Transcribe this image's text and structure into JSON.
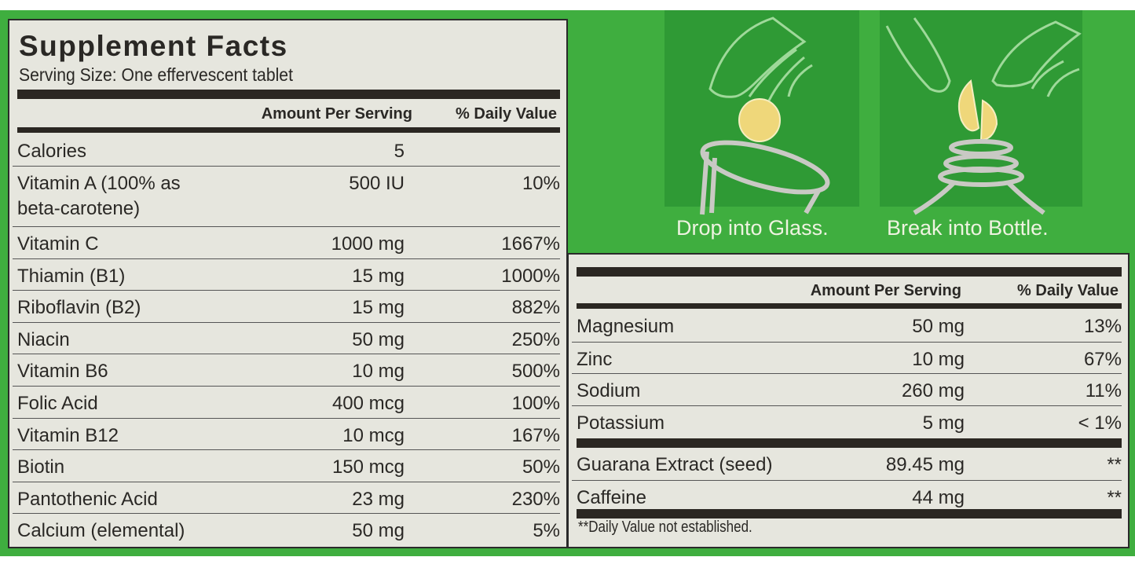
{
  "colors": {
    "background": "#3fae3f",
    "panel": "#e6e6de",
    "text": "#2a2825",
    "tablet": "#efd77a"
  },
  "instructions": {
    "step1": "Drop into Glass.",
    "step2": "Break into Bottle."
  },
  "icons": [
    "hand-icon",
    "tablet-icon",
    "glass-icon",
    "bottle-icon"
  ],
  "facts": {
    "title": "Supplement Facts",
    "serving_size": "Serving Size: One effervescent tablet",
    "header_amount": "Amount Per Serving",
    "header_dv": "% Daily Value",
    "rows": [
      {
        "name": "Calories",
        "amount": "5",
        "dv": ""
      },
      {
        "name": "Vitamin A (100% as\nbeta-carotene)",
        "amount": "500 IU",
        "dv": "10%"
      },
      {
        "name": "Vitamin C",
        "amount": "1000 mg",
        "dv": "1667%"
      },
      {
        "name": "Thiamin (B1)",
        "amount": "15 mg",
        "dv": "1000%"
      },
      {
        "name": "Riboflavin (B2)",
        "amount": "15 mg",
        "dv": "882%"
      },
      {
        "name": "Niacin",
        "amount": "50 mg",
        "dv": "250%"
      },
      {
        "name": "Vitamin B6",
        "amount": "10 mg",
        "dv": "500%"
      },
      {
        "name": "Folic Acid",
        "amount": "400 mcg",
        "dv": "100%"
      },
      {
        "name": "Vitamin B12",
        "amount": "10 mcg",
        "dv": "167%"
      },
      {
        "name": "Biotin",
        "amount": "150 mcg",
        "dv": "50%"
      },
      {
        "name": "Pantothenic Acid",
        "amount": "23 mg",
        "dv": "230%"
      },
      {
        "name": "Calcium (elemental)",
        "amount": "50 mg",
        "dv": "5%"
      }
    ]
  },
  "facts_continued": {
    "header_amount": "Amount Per Serving",
    "header_dv": "% Daily Value",
    "minerals": [
      {
        "name": "Magnesium",
        "amount": "50 mg",
        "dv": "13%"
      },
      {
        "name": "Zinc",
        "amount": "10 mg",
        "dv": "67%"
      },
      {
        "name": "Sodium",
        "amount": "260 mg",
        "dv": "11%"
      },
      {
        "name": "Potassium",
        "amount": "5 mg",
        "dv": "< 1%"
      }
    ],
    "other": [
      {
        "name": "Guarana Extract (seed)",
        "amount": "89.45 mg",
        "dv": "**"
      },
      {
        "name": "Caffeine",
        "amount": "44 mg",
        "dv": "**"
      }
    ],
    "footnote": "**Daily Value not established."
  }
}
